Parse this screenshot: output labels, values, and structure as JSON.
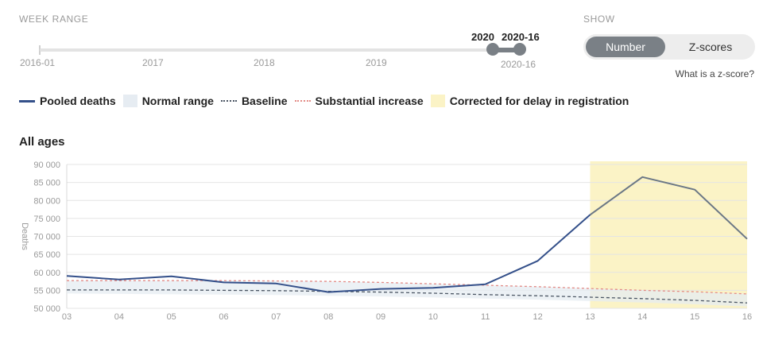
{
  "controls": {
    "week_range_label": "WEEK RANGE",
    "show_label": "SHOW",
    "range_start": "2016-01",
    "years": [
      "2017",
      "2018",
      "2019"
    ],
    "handle_labels": [
      "2020",
      "2020-16"
    ],
    "range_end": "2020-16",
    "toggle_options": [
      "Number",
      "Z-scores"
    ],
    "toggle_selected": "Number",
    "zscore_help": "What is a z-score?"
  },
  "legend": {
    "pooled": "Pooled deaths",
    "normal": "Normal range",
    "baseline": "Baseline",
    "substantial": "Substantial increase",
    "corrected": "Corrected for delay in registration"
  },
  "colors": {
    "pooled": "#34508a",
    "pooled_corrected": "#6b7785",
    "normal_range": "#e6ecf2",
    "baseline": "#4a5563",
    "substantial": "#e38b86",
    "corrected": "#fbf3c6",
    "control_active": "#7a8086"
  },
  "chart_data": {
    "type": "line",
    "title": "All ages",
    "ylabel": "Deaths",
    "xlabel": "",
    "categories": [
      "03",
      "04",
      "05",
      "06",
      "07",
      "08",
      "09",
      "10",
      "11",
      "12",
      "13",
      "14",
      "15",
      "16"
    ],
    "ylim": [
      50000,
      90000
    ],
    "yticks": [
      50000,
      55000,
      60000,
      65000,
      70000,
      75000,
      80000,
      85000,
      90000
    ],
    "ytick_labels": [
      "50 000",
      "55 000",
      "60 000",
      "65 000",
      "70 000",
      "75 000",
      "80 000",
      "85 000",
      "90 000"
    ],
    "corrected_from_category": "13",
    "series": [
      {
        "name": "Pooled deaths",
        "values": [
          59000,
          58000,
          58900,
          57200,
          56900,
          54500,
          55400,
          55700,
          56700,
          63200,
          76000,
          86500,
          83000,
          69300
        ]
      },
      {
        "name": "Baseline",
        "values": [
          55100,
          55100,
          55100,
          55000,
          54900,
          54700,
          54500,
          54200,
          53800,
          53500,
          53100,
          52700,
          52200,
          51500
        ]
      },
      {
        "name": "Substantial increase",
        "values": [
          57700,
          57700,
          57700,
          57700,
          57600,
          57500,
          57200,
          56800,
          56400,
          56000,
          55500,
          55000,
          54600,
          54000
        ]
      },
      {
        "name": "Normal range lower",
        "values": [
          54100,
          54000,
          53900,
          53800,
          53700,
          53500,
          53300,
          53000,
          52700,
          52400,
          52000,
          51600,
          51100,
          50500
        ]
      }
    ]
  }
}
